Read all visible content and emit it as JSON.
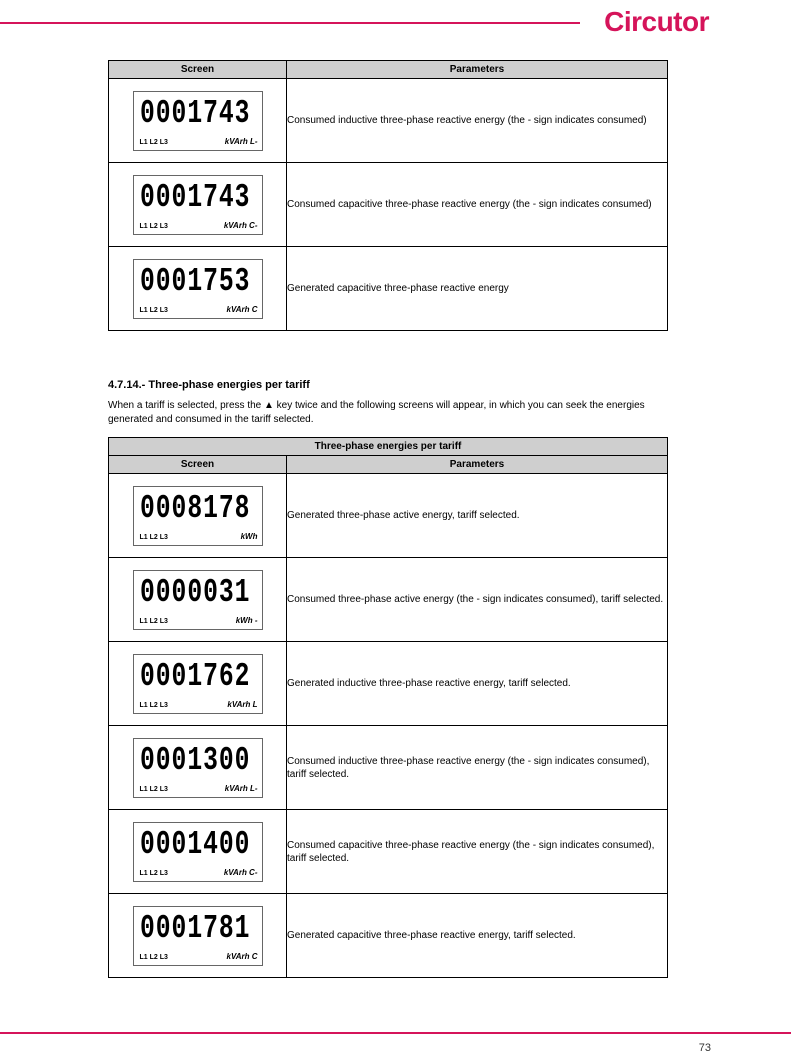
{
  "brand": "Circutor",
  "page_number": "73",
  "table1": {
    "header_col1": "Screen",
    "header_col2": "Parameters",
    "rows": [
      {
        "lcd_value": "0001743",
        "lcd_phases": "L1 L2 L3",
        "lcd_unit": "kVArh L-",
        "desc": "Consumed inductive three-phase reactive energy (the - sign indicates consumed)"
      },
      {
        "lcd_value": "0001743",
        "lcd_phases": "L1 L2 L3",
        "lcd_unit": "kVArh  C-",
        "desc": "Consumed capacitive three-phase reactive energy (the - sign indicates consumed)"
      },
      {
        "lcd_value": "0001753",
        "lcd_phases": "L1 L2 L3",
        "lcd_unit": "kVArh  C",
        "desc": "Generated capacitive three-phase reactive energy"
      }
    ]
  },
  "section": {
    "heading": "4.7.14.- Three-phase energies per tariff",
    "body": "When a tariff is selected, press the ▲ key twice and the following screens will appear, in which you can seek the energies generated and consumed in the tariff selected."
  },
  "table2": {
    "title_row": "Three-phase energies per tariff",
    "header_col1": "Screen",
    "header_col2": "Parameters",
    "rows": [
      {
        "lcd_value": "0008178",
        "lcd_phases": "L1 L2 L3",
        "lcd_unit": "kWh",
        "desc": "Generated three-phase active energy, tariff selected."
      },
      {
        "lcd_value": "0000031",
        "lcd_phases": "L1 L2 L3",
        "lcd_unit": "kWh -",
        "desc": "Consumed three-phase active energy (the - sign indicates consumed), tariff selected."
      },
      {
        "lcd_value": "0001762",
        "lcd_phases": "L1 L2 L3",
        "lcd_unit": "kVArh L",
        "desc": "Generated inductive three-phase reactive energy, tariff selected."
      },
      {
        "lcd_value": "0001300",
        "lcd_phases": "L1 L2 L3",
        "lcd_unit": "kVArh L-",
        "desc": "Consumed inductive three-phase reactive energy (the - sign indicates consumed), tariff selected."
      },
      {
        "lcd_value": "0001400",
        "lcd_phases": "L1 L2 L3",
        "lcd_unit": "kVArh C-",
        "desc": "Consumed capacitive three-phase reactive energy (the - sign indicates consumed), tariff selected."
      },
      {
        "lcd_value": "0001781",
        "lcd_phases": "L1 L2 L3",
        "lcd_unit": "kVArh C",
        "desc": "Generated capacitive three-phase reactive energy, tariff selected."
      }
    ]
  },
  "colors": {
    "brand": "#d5145a",
    "table_header_bg": "#cfcfcf",
    "border": "#000000",
    "background": "#ffffff"
  }
}
